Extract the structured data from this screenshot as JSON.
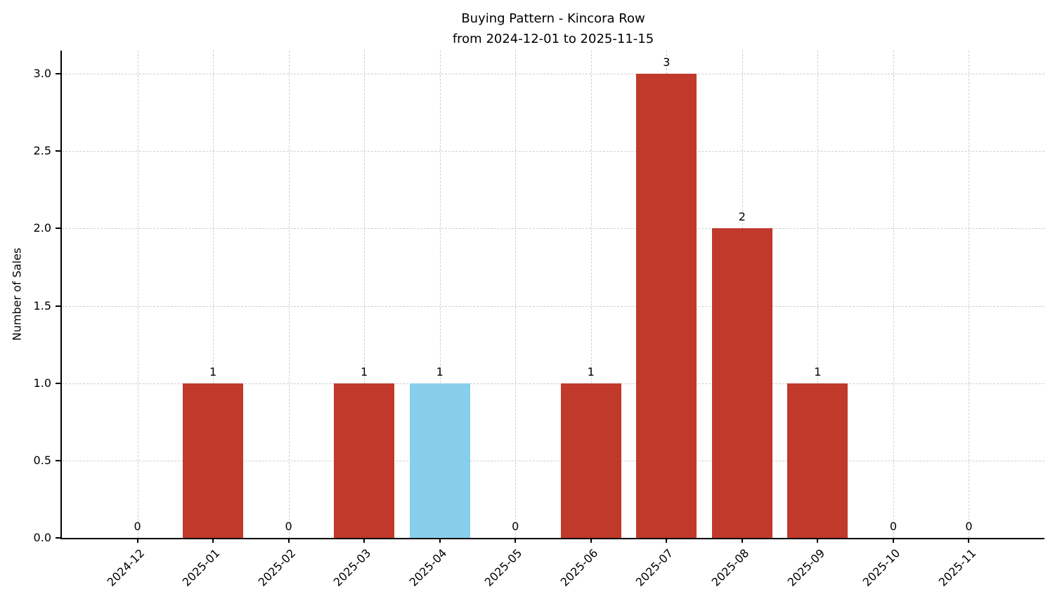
{
  "chart_data": {
    "type": "bar",
    "title": "Buying Pattern - Kincora Row",
    "subtitle": "from 2024-12-01 to 2025-11-15",
    "xlabel": "",
    "ylabel": "Number of Sales",
    "categories": [
      "2024-12",
      "2025-01",
      "2025-02",
      "2025-03",
      "2025-04",
      "2025-05",
      "2025-06",
      "2025-07",
      "2025-08",
      "2025-09",
      "2025-10",
      "2025-11"
    ],
    "values": [
      0,
      1,
      0,
      1,
      1,
      0,
      1,
      3,
      2,
      1,
      0,
      0
    ],
    "bar_labels": [
      "0",
      "1",
      "0",
      "1",
      "1",
      "0",
      "1",
      "3",
      "2",
      "1",
      "0",
      "0"
    ],
    "yticks": [
      0.0,
      0.5,
      1.0,
      1.5,
      2.0,
      2.5,
      3.0
    ],
    "ytick_labels": [
      "0.0",
      "0.5",
      "1.0",
      "1.5",
      "2.0",
      "2.5",
      "3.0"
    ],
    "ylim": [
      0,
      3.15
    ],
    "grid": true,
    "legend": "none",
    "highlight_index": 4,
    "colors": {
      "bar": "#c0392b",
      "highlight_bar": "#87ceeb",
      "grid": "#cfcfcf",
      "axis": "#000000",
      "text": "#000000"
    }
  }
}
